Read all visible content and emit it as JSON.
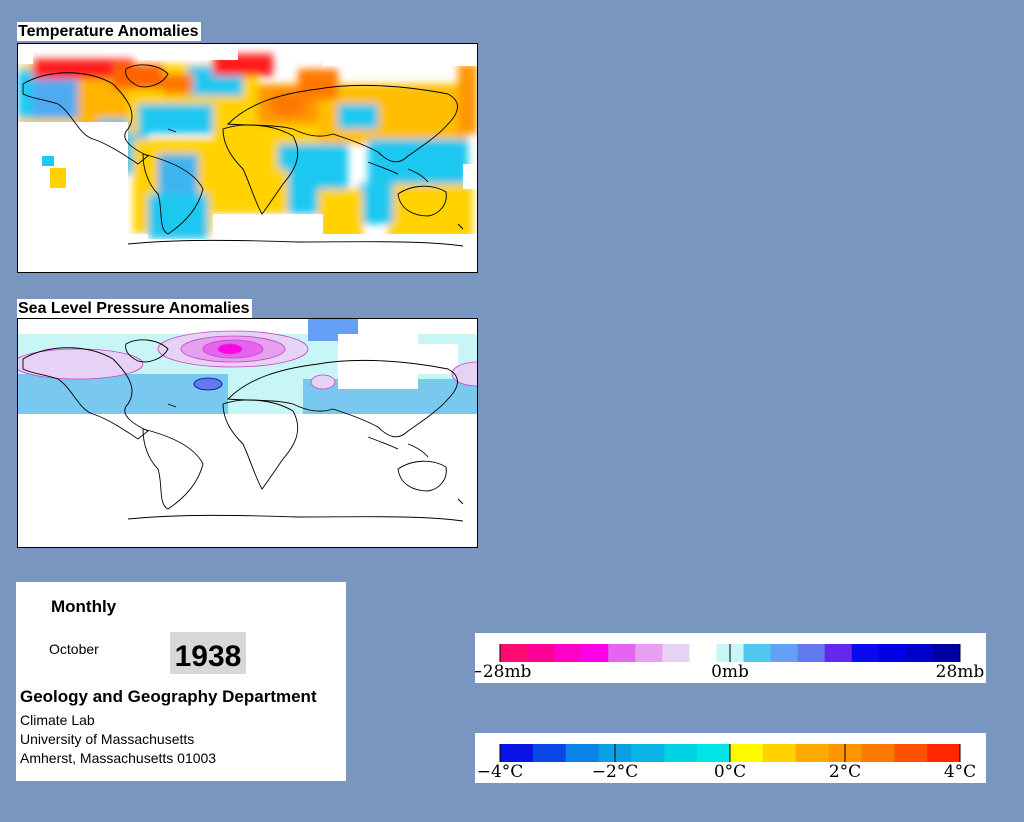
{
  "maps": {
    "temperature": {
      "title": "Temperature Anomalies"
    },
    "pressure": {
      "title": "Sea Level Pressure Anomalies"
    }
  },
  "info": {
    "period": "Monthly",
    "month": "October",
    "year": "1938",
    "department": "Geology and Geography Department",
    "lines": [
      "Climate Lab",
      "University of Massachusetts",
      "Amherst, Massachusetts 01003"
    ]
  },
  "legends": {
    "pressure": {
      "colors": [
        "#ff0a6e",
        "#ff0096",
        "#ff00c8",
        "#ff00e6",
        "#e664f0",
        "#e6a0f0",
        "#e6d2f5",
        "#ffffff",
        "#c8f5f5",
        "#50c8f0",
        "#64a0f5",
        "#6478f0",
        "#6428f0",
        "#0a0af0",
        "#0000e6",
        "#0000c8",
        "#0000a0"
      ],
      "labels": [
        {
          "text": "−28mb",
          "value": -28
        },
        {
          "text": "0mb",
          "value": 0
        },
        {
          "text": "28mb",
          "value": 28
        }
      ],
      "range": [
        -28,
        28
      ]
    },
    "temperature": {
      "colors": [
        "#0a14e6",
        "#0a46e6",
        "#0a82e6",
        "#0aa0e6",
        "#0ab4e6",
        "#00d2e6",
        "#00e6e6",
        "#fffa00",
        "#ffd200",
        "#ffaa00",
        "#ff9600",
        "#ff7800",
        "#ff5000",
        "#ff2800"
      ],
      "labels": [
        {
          "text": "−4°C",
          "value": -4
        },
        {
          "text": "−2°C",
          "value": -2
        },
        {
          "text": "0°C",
          "value": 0
        },
        {
          "text": "2°C",
          "value": 2
        },
        {
          "text": "4°C",
          "value": 4
        }
      ],
      "range": [
        -4,
        4
      ]
    }
  }
}
